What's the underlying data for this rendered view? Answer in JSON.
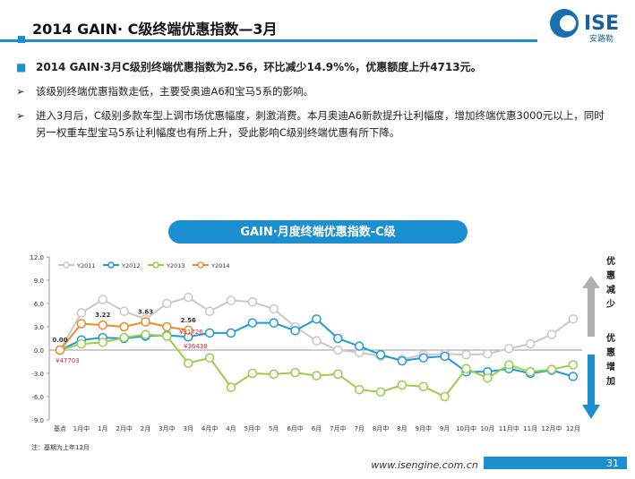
{
  "header": {
    "title": "2014 GAIN· C级终端优惠指数—3月",
    "logo": "ISE",
    "logo_sub": "安路勒"
  },
  "bullets": [
    "2014 GAIN·3月C级别终端优惠指数为2.56，环比减少14.9%%，优惠额度上升4713元。",
    "该级别终端优惠指数走低，主要受奥迪A6和宝马5系的影响。",
    "进入3月后，C级别多款车型上调市场优惠幅度，刺激消费。本月奥迪A6新款提升让利幅度，增加终端优惠3000元以上，同时另一权重车型宝马5系让利幅度也有所上升，受此影响C级别终端优惠有所下降。"
  ],
  "chart_data": {
    "type": "line",
    "title": "GAIN·月度终端优惠指数-C级",
    "categories": [
      "基点",
      "1月中",
      "1月",
      "2月中",
      "2月",
      "3月中",
      "3月",
      "4月中",
      "4月",
      "5月中",
      "5月",
      "6月中",
      "6月",
      "7月中",
      "7月",
      "8月中",
      "8月",
      "9月中",
      "9月",
      "10月中",
      "10月",
      "11月中",
      "11月",
      "12月中",
      "12月"
    ],
    "series": [
      {
        "name": "Y2011",
        "color": "#c8c8c8",
        "values": [
          0,
          4.8,
          6.5,
          5.0,
          4.0,
          6.0,
          6.8,
          5.0,
          6.4,
          6.2,
          5.3,
          3.0,
          1.2,
          0.0,
          -0.3,
          -0.8,
          -1.2,
          -0.6,
          -0.5,
          -0.6,
          -0.5,
          0.2,
          0.8,
          2.0,
          4.0
        ]
      },
      {
        "name": "Y2012",
        "color": "#1f9ad6",
        "values": [
          0,
          1.3,
          1.6,
          1.5,
          1.8,
          1.9,
          1.7,
          2.2,
          2.2,
          3.5,
          3.5,
          2.5,
          4.0,
          1.5,
          0.5,
          -0.6,
          -1.4,
          -1.0,
          -0.8,
          -2.8,
          -2.8,
          -2.4,
          -3.0,
          -2.6,
          -3.4
        ]
      },
      {
        "name": "Y2013",
        "color": "#9acd4a",
        "values": [
          0,
          0.8,
          1.0,
          1.6,
          2.0,
          1.8,
          -1.7,
          -1.0,
          -4.8,
          -3.0,
          -3.1,
          -2.9,
          -3.3,
          -3.1,
          -5.1,
          -5.4,
          -4.5,
          -4.7,
          -6.0,
          -2.4,
          -3.6,
          -1.9,
          -2.8,
          -2.5,
          -1.9
        ]
      },
      {
        "name": "Y2014",
        "color": "#ee8a2e",
        "values": [
          0,
          3.4,
          3.22,
          3.0,
          3.63,
          3.0,
          2.56,
          null,
          null,
          null,
          null,
          null,
          null,
          null,
          null,
          null,
          null,
          null,
          null,
          null,
          null,
          null,
          null,
          null,
          null
        ],
        "value_labels": [
          "0.00",
          null,
          "3.22",
          null,
          "3.63",
          null,
          "2.56",
          null,
          null,
          null,
          null,
          null,
          null,
          null,
          null,
          null,
          null,
          null,
          null,
          null,
          null,
          null,
          null,
          null,
          null
        ]
      }
    ],
    "ylim": [
      -9,
      12
    ],
    "yticks": [
      {
        "value": -9,
        "label": "-9.0"
      },
      {
        "value": -6,
        "label": "-6.0"
      },
      {
        "value": -3,
        "label": "-3.0"
      },
      {
        "value": 0,
        "label": "0.0"
      },
      {
        "value": 3,
        "label": "3.0"
      },
      {
        "value": 6,
        "label": "6.0"
      },
      {
        "value": 9,
        "label": "9.0"
      },
      {
        "value": 12,
        "label": "12.0"
      }
    ],
    "grid": false,
    "annotations": [
      "¥47703",
      "¥31726",
      "¥36438",
      "优惠减少",
      "优惠增加"
    ],
    "note": "注：基期为上年12月"
  },
  "footer": {
    "url": "www.isengine.com.cn",
    "page": "31"
  }
}
